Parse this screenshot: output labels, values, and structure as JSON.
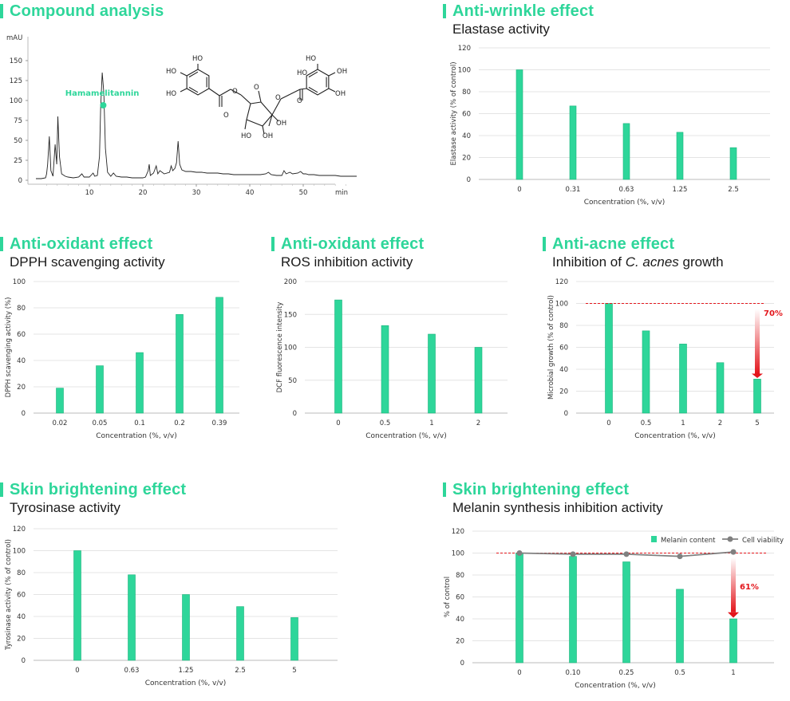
{
  "colors": {
    "accent": "#2ed69a",
    "bar": "#2ed69a",
    "bar_edge": "#1cb37c",
    "red": "#e3161c",
    "gray": "#808080",
    "axis": "#cccccc",
    "text": "#333333"
  },
  "panels": {
    "compound": {
      "title": "Compound analysis"
    },
    "wrinkle": {
      "title": "Anti-wrinkle effect",
      "subtitle": "Elastase activity"
    },
    "dpph": {
      "title": "Anti-oxidant effect",
      "subtitle": "DPPH scavenging activity"
    },
    "ros": {
      "title": "Anti-oxidant effect",
      "subtitle": "ROS inhibition activity"
    },
    "acne": {
      "title": "Anti-acne effect",
      "subtitle_pre": "Inhibition of ",
      "subtitle_em": "C. acnes",
      "subtitle_post": " growth"
    },
    "tyro": {
      "title": "Skin brightening effect",
      "subtitle": "Tyrosinase activity"
    },
    "melanin": {
      "title": "Skin brightening effect",
      "subtitle": "Melanin synthesis inhibition activity"
    }
  },
  "chart_data": [
    {
      "id": "chromatogram",
      "type": "line",
      "ylabel": "mAU",
      "xlabel": "min",
      "xlim": [
        0,
        60
      ],
      "ylim": [
        0,
        180
      ],
      "xticks": [
        10,
        20,
        30,
        40,
        50
      ],
      "yticks": [
        0,
        25,
        50,
        75,
        100,
        125,
        150
      ],
      "peak_label": "Hamamelitannin",
      "structure_labels": [
        "HO",
        "HO",
        "HO",
        "HO",
        "HO",
        "OH",
        "O",
        "O",
        "O",
        "O",
        "O",
        "OH",
        "HO",
        "OH",
        "OH"
      ],
      "points": [
        [
          0,
          2
        ],
        [
          1,
          2
        ],
        [
          1.8,
          3
        ],
        [
          2,
          8
        ],
        [
          2.2,
          20
        ],
        [
          2.5,
          55
        ],
        [
          2.8,
          12
        ],
        [
          3.2,
          5
        ],
        [
          3.6,
          45
        ],
        [
          3.9,
          20
        ],
        [
          4.1,
          80
        ],
        [
          4.4,
          30
        ],
        [
          4.8,
          8
        ],
        [
          5.5,
          5
        ],
        [
          6,
          4
        ],
        [
          7,
          3
        ],
        [
          8,
          4
        ],
        [
          8.6,
          8
        ],
        [
          9,
          4
        ],
        [
          10,
          4
        ],
        [
          10.7,
          9
        ],
        [
          11,
          5
        ],
        [
          11.5,
          6
        ],
        [
          11.9,
          30
        ],
        [
          12.1,
          90
        ],
        [
          12.4,
          135
        ],
        [
          12.7,
          110
        ],
        [
          13,
          40
        ],
        [
          13.4,
          10
        ],
        [
          14,
          5
        ],
        [
          14.5,
          9
        ],
        [
          15,
          5
        ],
        [
          16,
          4
        ],
        [
          17,
          4
        ],
        [
          18,
          3
        ],
        [
          19,
          3
        ],
        [
          20,
          3
        ],
        [
          20.5,
          4
        ],
        [
          21,
          12
        ],
        [
          21.2,
          20
        ],
        [
          21.4,
          6
        ],
        [
          22,
          9
        ],
        [
          22.5,
          18
        ],
        [
          22.8,
          8
        ],
        [
          23.2,
          12
        ],
        [
          24,
          8
        ],
        [
          25,
          10
        ],
        [
          25.3,
          18
        ],
        [
          25.6,
          12
        ],
        [
          26,
          15
        ],
        [
          26.3,
          22
        ],
        [
          26.6,
          49
        ],
        [
          26.9,
          20
        ],
        [
          27.3,
          13
        ],
        [
          28,
          11
        ],
        [
          29,
          11
        ],
        [
          30,
          10
        ],
        [
          31,
          10
        ],
        [
          32,
          9
        ],
        [
          33,
          9
        ],
        [
          34,
          9
        ],
        [
          35,
          8
        ],
        [
          36,
          8
        ],
        [
          37,
          7
        ],
        [
          38,
          7
        ],
        [
          39,
          7
        ],
        [
          40,
          7
        ],
        [
          41,
          7
        ],
        [
          42,
          7
        ],
        [
          43,
          8
        ],
        [
          43.5,
          10
        ],
        [
          44,
          7
        ],
        [
          45,
          6
        ],
        [
          46,
          6
        ],
        [
          46.4,
          12
        ],
        [
          46.8,
          8
        ],
        [
          47.5,
          10
        ],
        [
          48,
          8
        ],
        [
          49,
          9
        ],
        [
          49.5,
          11
        ],
        [
          50,
          8
        ],
        [
          50.5,
          8
        ],
        [
          51,
          7
        ],
        [
          52,
          7
        ],
        [
          53,
          6
        ],
        [
          54,
          6
        ],
        [
          55,
          6
        ],
        [
          56,
          6
        ],
        [
          57,
          5
        ],
        [
          58,
          5
        ],
        [
          59,
          5
        ],
        [
          60,
          5
        ]
      ]
    },
    {
      "id": "elastase",
      "type": "bar",
      "categories": [
        "0",
        "0.31",
        "0.63",
        "1.25",
        "2.5"
      ],
      "values": [
        100,
        67,
        51,
        43,
        29
      ],
      "xlabel": "Concentration (%, v/v)",
      "ylabel": "Elastase activity  (% of control)",
      "ylim": [
        0,
        120
      ],
      "yticks": [
        0,
        20,
        40,
        60,
        80,
        100,
        120
      ],
      "grid": true
    },
    {
      "id": "dpph",
      "type": "bar",
      "categories": [
        "0.02",
        "0.05",
        "0.1",
        "0.2",
        "0.39"
      ],
      "values": [
        19,
        36,
        46,
        75,
        88
      ],
      "xlabel": "Concentration (%, v/v)",
      "ylabel": "DPPH scavenging activity (%)",
      "ylim": [
        0,
        100
      ],
      "yticks": [
        0,
        20,
        40,
        60,
        80,
        100
      ],
      "grid": true
    },
    {
      "id": "ros",
      "type": "bar",
      "categories": [
        "0",
        "0.5",
        "1",
        "2"
      ],
      "values": [
        172,
        133,
        120,
        100
      ],
      "xlabel": "Concentration (%, v/v)",
      "ylabel": "DCF fluorescence intensity",
      "ylim": [
        0,
        200
      ],
      "yticks": [
        0,
        50,
        100,
        150,
        200
      ],
      "grid": true
    },
    {
      "id": "acne",
      "type": "bar",
      "categories": [
        "0",
        "0.5",
        "1",
        "2",
        "5"
      ],
      "values": [
        100,
        75,
        63,
        46,
        31
      ],
      "xlabel": "Concentration (%, v/v)",
      "ylabel": "Microbial growth (% of control)",
      "ylim": [
        0,
        120
      ],
      "yticks": [
        0,
        20,
        40,
        60,
        80,
        100,
        120
      ],
      "grid": true,
      "reference_line": 100,
      "annotation": "70%"
    },
    {
      "id": "tyrosinase",
      "type": "bar",
      "categories": [
        "0",
        "0.63",
        "1.25",
        "2.5",
        "5"
      ],
      "values": [
        100,
        78,
        60,
        49,
        39
      ],
      "xlabel": "Concentration (%, v/v)",
      "ylabel": "Tyrosinase activity (% of control)",
      "ylim": [
        0,
        120
      ],
      "yticks": [
        0,
        20,
        40,
        60,
        80,
        100,
        120
      ],
      "grid": true
    },
    {
      "id": "melanin",
      "type": "bar",
      "categories": [
        "0",
        "0.10",
        "0.25",
        "0.5",
        "1"
      ],
      "series": [
        {
          "name": "Melanin content",
          "type": "bar",
          "values": [
            100,
            97,
            92,
            67,
            40
          ]
        },
        {
          "name": "Cell viability",
          "type": "line",
          "values": [
            100,
            99,
            99,
            97,
            101
          ]
        }
      ],
      "xlabel": "Concentration (%, v/v)",
      "ylabel": "% of control",
      "ylim": [
        0,
        120
      ],
      "yticks": [
        0,
        20,
        40,
        60,
        80,
        100,
        120
      ],
      "grid": true,
      "legend": "top-right",
      "reference_line": 100,
      "annotation": "61%"
    }
  ]
}
